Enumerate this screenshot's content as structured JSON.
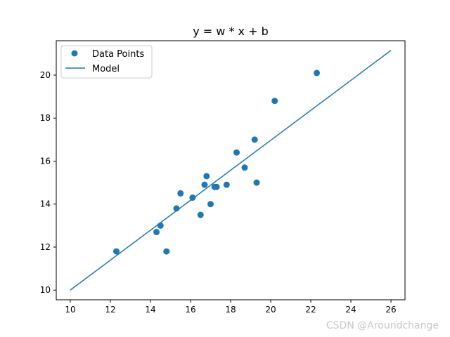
{
  "chart_data": {
    "type": "scatter",
    "title": "y = w * x + b",
    "xlabel": "",
    "ylabel": "",
    "xlim": [
      9.3,
      26.7
    ],
    "ylim": [
      9.55,
      21.6
    ],
    "xticks": [
      "10",
      "12",
      "14",
      "16",
      "18",
      "20",
      "22",
      "24",
      "26"
    ],
    "yticks": [
      "10",
      "12",
      "14",
      "16",
      "18",
      "20"
    ],
    "grid": false,
    "legend_placement": "top-left",
    "series": [
      {
        "name": "Data Points",
        "kind": "scatter",
        "color": "#1f77b4",
        "points": [
          {
            "x": 12.3,
            "y": 11.8
          },
          {
            "x": 14.3,
            "y": 12.7
          },
          {
            "x": 14.5,
            "y": 13.0
          },
          {
            "x": 14.8,
            "y": 11.8
          },
          {
            "x": 15.3,
            "y": 13.8
          },
          {
            "x": 15.5,
            "y": 14.5
          },
          {
            "x": 16.1,
            "y": 14.3
          },
          {
            "x": 16.5,
            "y": 13.5
          },
          {
            "x": 16.7,
            "y": 14.9
          },
          {
            "x": 16.8,
            "y": 15.3
          },
          {
            "x": 17.0,
            "y": 14.0
          },
          {
            "x": 17.2,
            "y": 14.8
          },
          {
            "x": 17.3,
            "y": 14.8
          },
          {
            "x": 17.8,
            "y": 14.9
          },
          {
            "x": 18.3,
            "y": 16.4
          },
          {
            "x": 18.7,
            "y": 15.7
          },
          {
            "x": 19.2,
            "y": 17.0
          },
          {
            "x": 19.3,
            "y": 15.0
          },
          {
            "x": 20.2,
            "y": 18.8
          },
          {
            "x": 22.3,
            "y": 20.1
          }
        ]
      },
      {
        "name": "Model",
        "kind": "line",
        "color": "#1f77b4",
        "points": [
          {
            "x": 10,
            "y": 10.0
          },
          {
            "x": 26,
            "y": 21.15
          }
        ]
      }
    ]
  },
  "watermark": "CSDN @Aroundchange"
}
